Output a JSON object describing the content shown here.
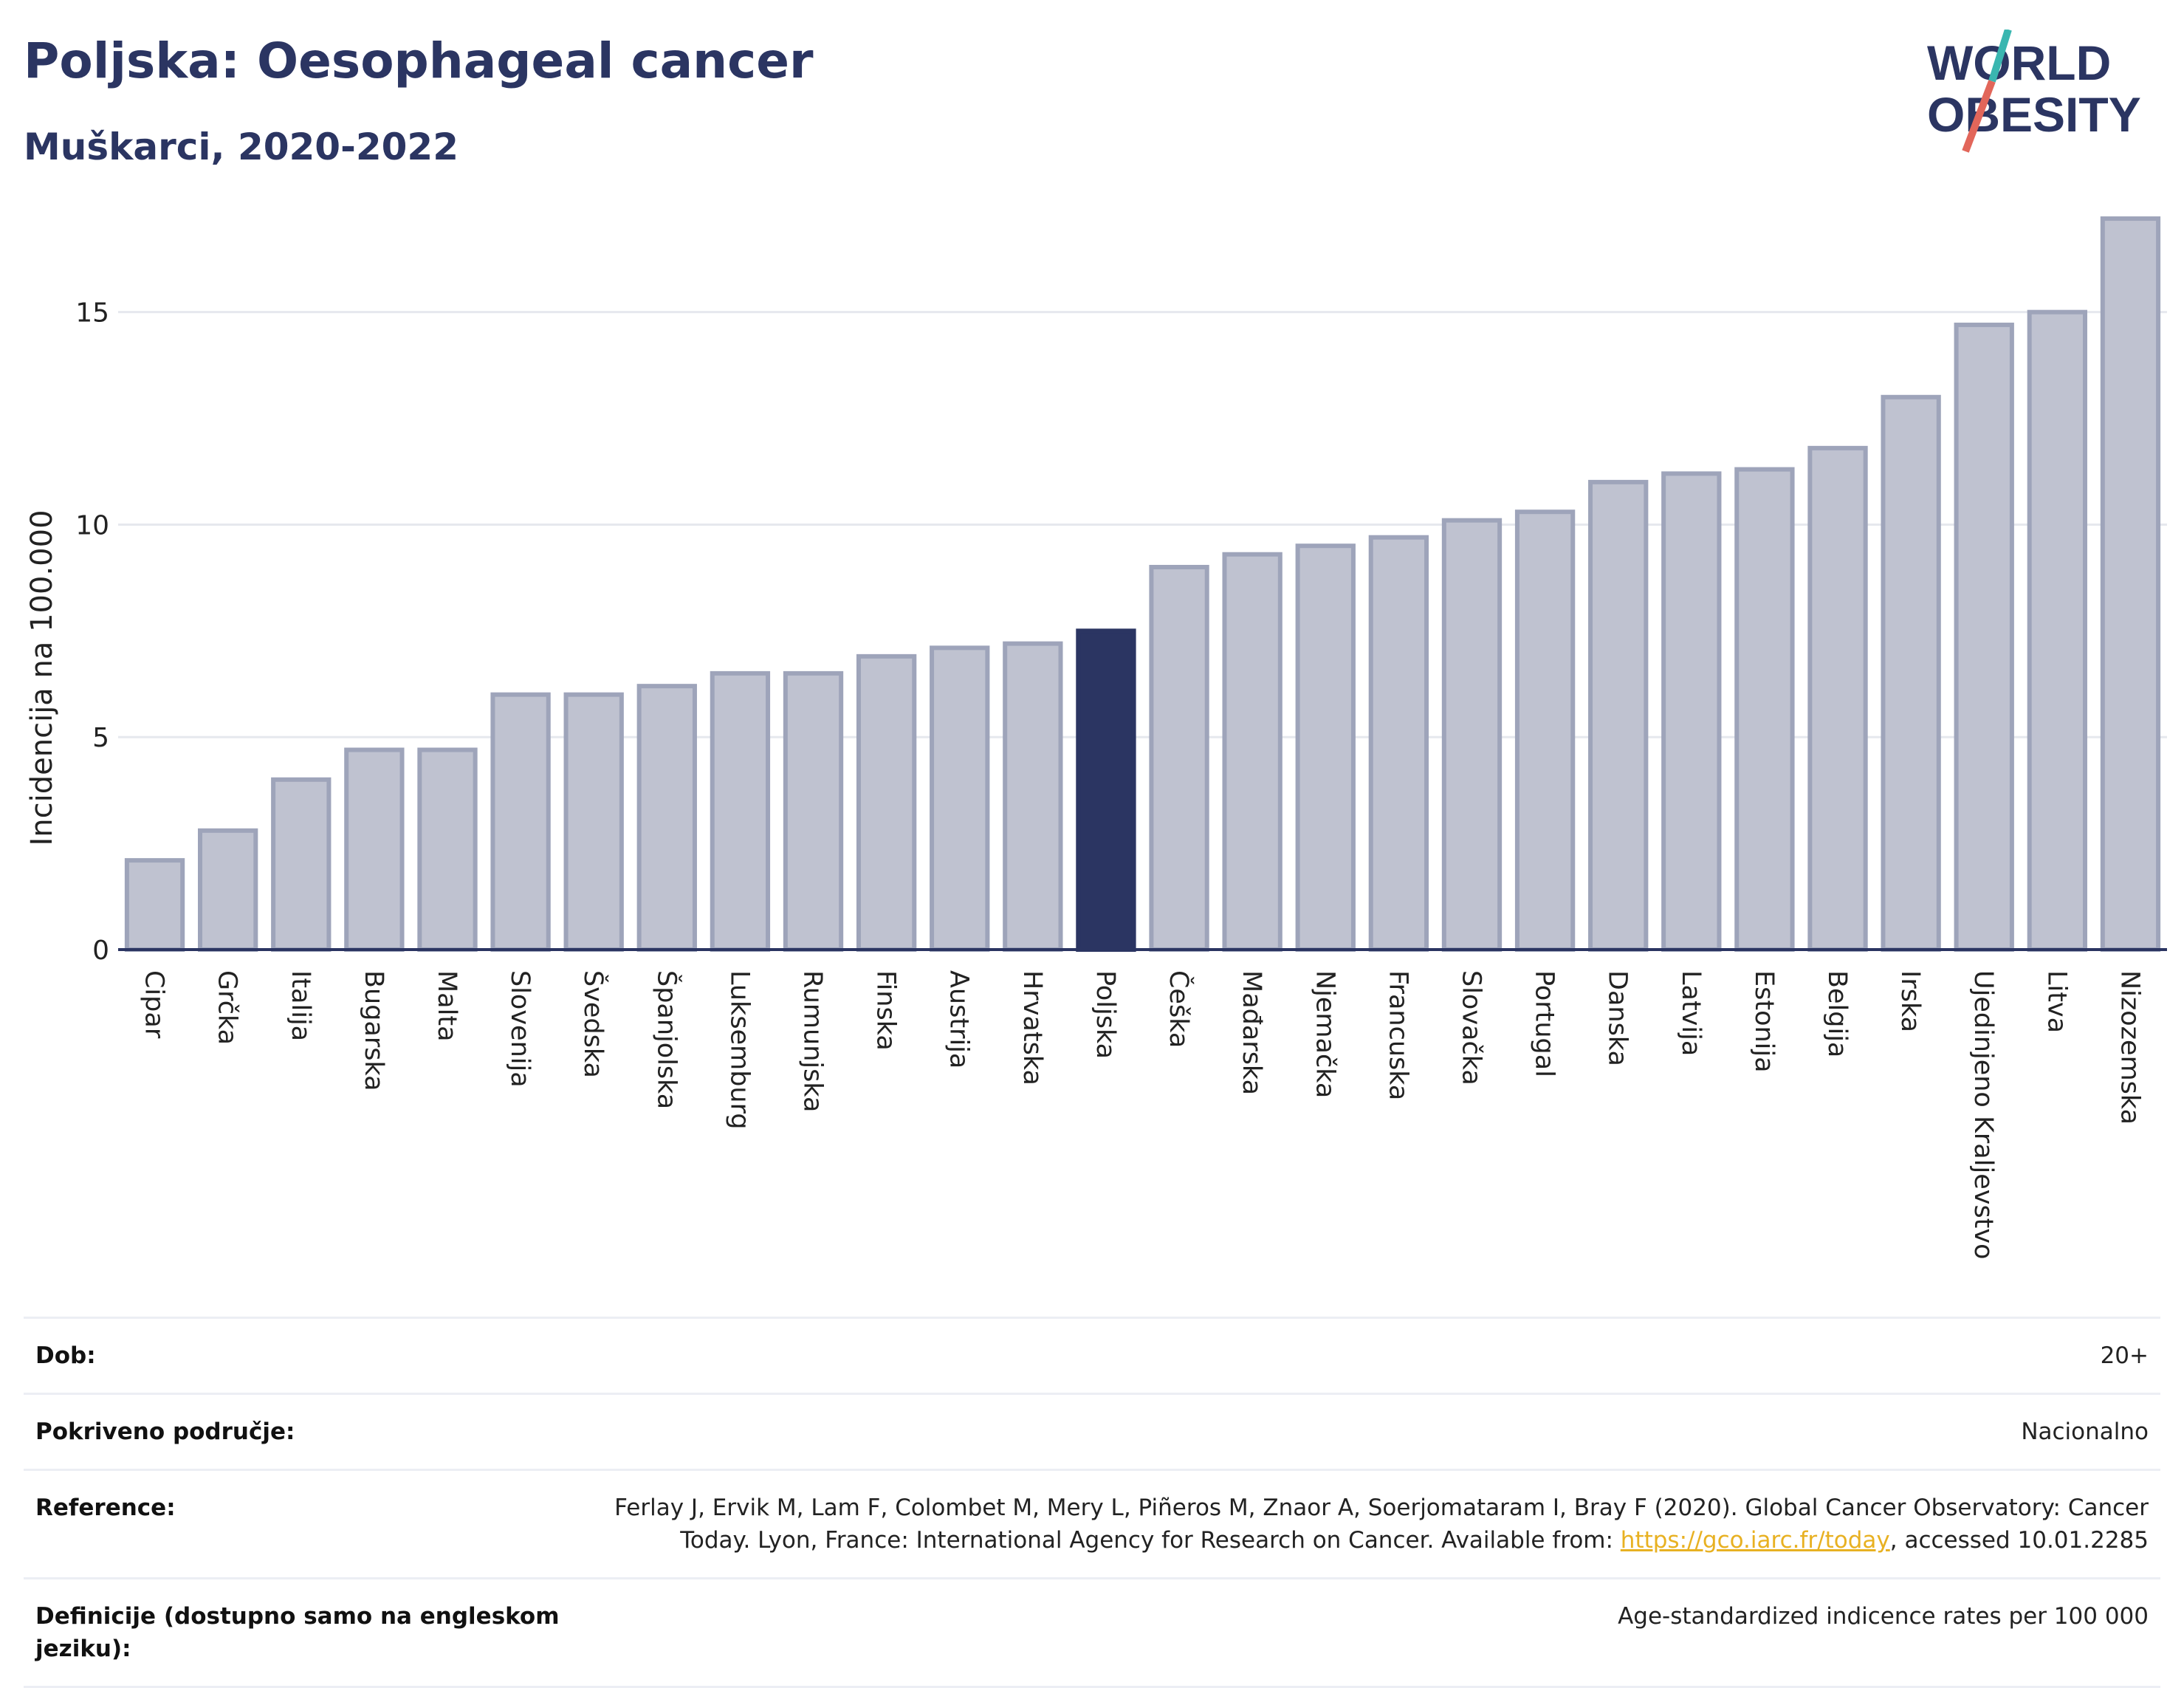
{
  "title": "Poljska: Oesophageal cancer",
  "subtitle": "Muškarci, 2020-2022",
  "logo": {
    "line1": "WORLD",
    "line2": "OBESITY"
  },
  "colors": {
    "bar": "#bfc2d0",
    "bar_stroke": "#9ea4ba",
    "highlight": "#2b3562",
    "axis": "#2b3562",
    "grid": "#e6e8ee"
  },
  "chart_data": {
    "type": "bar",
    "ylabel": "Incidencija na 100.000",
    "xlabel": "",
    "ylim": [
      0,
      18
    ],
    "yticks": [
      0,
      5,
      10,
      15
    ],
    "highlight": "Poljska",
    "categories": [
      "Cipar",
      "Grčka",
      "Italija",
      "Bugarska",
      "Malta",
      "Slovenija",
      "Švedska",
      "Španjolska",
      "Luksemburg",
      "Rumunjska",
      "Finska",
      "Austrija",
      "Hrvatska",
      "Poljska",
      "Češka",
      "Mađarska",
      "Njemačka",
      "Francuska",
      "Slovačka",
      "Portugal",
      "Danska",
      "Latvija",
      "Estonija",
      "Belgija",
      "Irska",
      "Ujedinjeno Kraljevstvo",
      "Litva",
      "Nizozemska"
    ],
    "values": [
      2.1,
      2.8,
      4.0,
      4.7,
      4.7,
      6.0,
      6.0,
      6.2,
      6.5,
      6.5,
      6.9,
      7.1,
      7.2,
      7.5,
      9.0,
      9.3,
      9.5,
      9.7,
      10.1,
      10.3,
      11.0,
      11.2,
      11.3,
      11.8,
      13.0,
      14.7,
      15.0,
      17.2
    ]
  },
  "meta": {
    "age_label": "Dob:",
    "age_value": "20+",
    "coverage_label": "Pokriveno područje:",
    "coverage_value": "Nacionalno",
    "reference_label": "Reference:",
    "reference_text_1": "Ferlay J, Ervik M, Lam F, Colombet M, Mery L, Piñeros M, Znaor A, Soerjomataram I, Bray F (2020). Global Cancer Observatory: Cancer Today. Lyon, France: International Agency for Research on Cancer. Available from: ",
    "reference_link": "https://gco.iarc.fr/today",
    "reference_text_2": ", accessed 10.01.2285",
    "definition_label": "Definicije (dostupno samo na engleskom jeziku):",
    "definition_value": "Age-standardized indicence rates per 100 000"
  }
}
